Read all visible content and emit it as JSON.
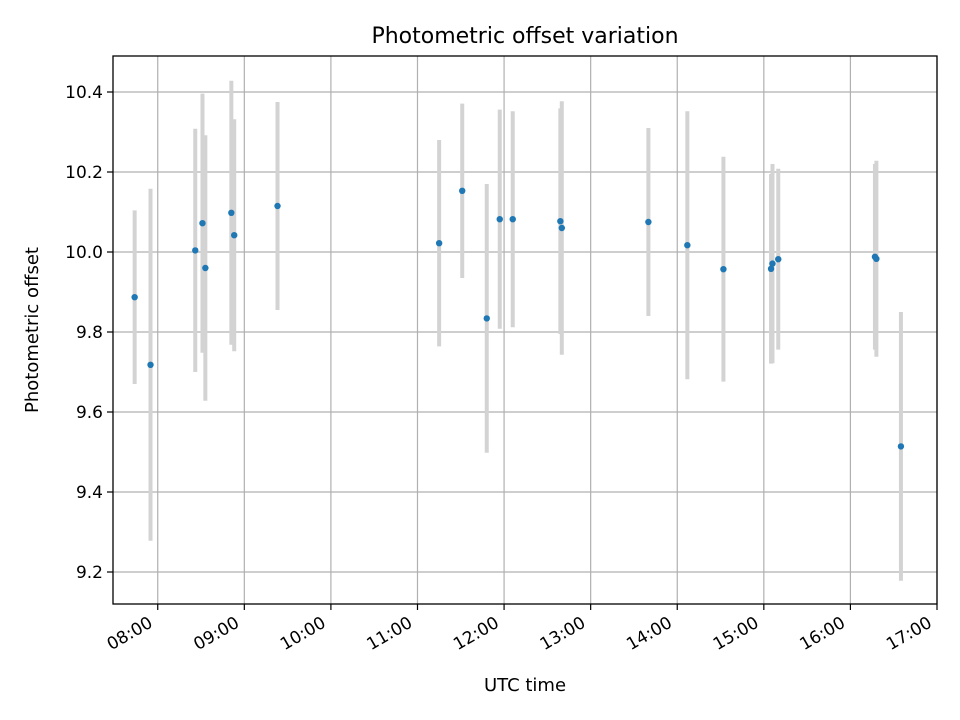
{
  "chart_data": {
    "type": "scatter",
    "title": "Photometric offset variation",
    "xlabel": "UTC time",
    "ylabel": "Photometric offset",
    "xlim": [
      "07:29",
      "17:00"
    ],
    "ylim": [
      9.12,
      10.49
    ],
    "grid": true,
    "x_ticks": [
      "08:00",
      "09:00",
      "10:00",
      "11:00",
      "12:00",
      "13:00",
      "14:00",
      "15:00",
      "16:00",
      "17:00"
    ],
    "y_ticks": [
      "9.2",
      "9.4",
      "9.6",
      "9.8",
      "10.0",
      "10.2",
      "10.4"
    ],
    "point_color": "#1f77b4",
    "errorbar_color": "#d3d3d3",
    "points": [
      {
        "x": "07:44",
        "y": 9.887,
        "err": 0.217
      },
      {
        "x": "07:55",
        "y": 9.718,
        "err": 0.44
      },
      {
        "x": "08:26",
        "y": 10.004,
        "err": 0.304
      },
      {
        "x": "08:31",
        "y": 10.072,
        "err": 0.324
      },
      {
        "x": "08:33",
        "y": 9.96,
        "err": 0.332
      },
      {
        "x": "08:51",
        "y": 10.098,
        "err": 0.33
      },
      {
        "x": "08:53",
        "y": 10.042,
        "err": 0.29
      },
      {
        "x": "09:23",
        "y": 10.115,
        "err": 0.26
      },
      {
        "x": "11:15",
        "y": 10.022,
        "err": 0.258
      },
      {
        "x": "11:31",
        "y": 10.153,
        "err": 0.218
      },
      {
        "x": "11:48",
        "y": 9.834,
        "err": 0.336
      },
      {
        "x": "11:57",
        "y": 10.082,
        "err": 0.274
      },
      {
        "x": "12:06",
        "y": 10.082,
        "err": 0.27
      },
      {
        "x": "12:39",
        "y": 10.077,
        "err": 0.282
      },
      {
        "x": "12:40",
        "y": 10.06,
        "err": 0.317
      },
      {
        "x": "13:40",
        "y": 10.075,
        "err": 0.235
      },
      {
        "x": "14:07",
        "y": 10.017,
        "err": 0.335
      },
      {
        "x": "14:32",
        "y": 9.957,
        "err": 0.281
      },
      {
        "x": "15:05",
        "y": 9.958,
        "err": 0.237
      },
      {
        "x": "15:06",
        "y": 9.971,
        "err": 0.249
      },
      {
        "x": "15:10",
        "y": 9.982,
        "err": 0.226
      },
      {
        "x": "16:17",
        "y": 9.988,
        "err": 0.232
      },
      {
        "x": "16:18",
        "y": 9.983,
        "err": 0.245
      },
      {
        "x": "16:35",
        "y": 9.514,
        "err": 0.336
      }
    ]
  }
}
